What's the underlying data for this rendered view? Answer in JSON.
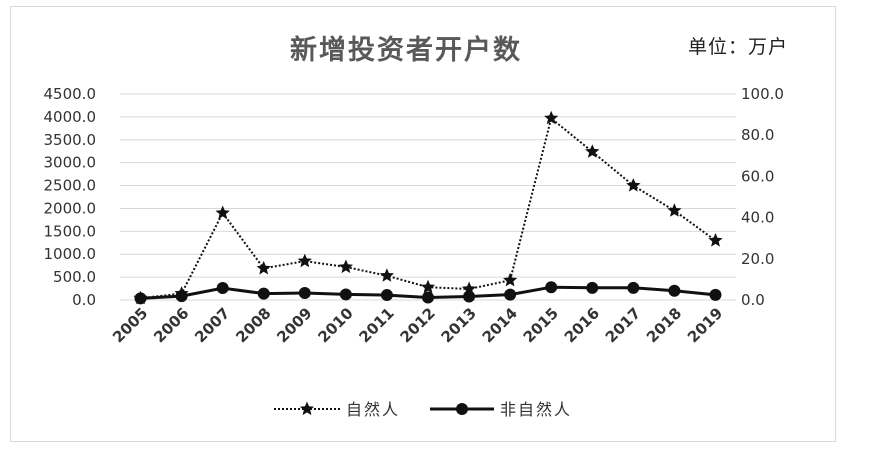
{
  "chart_data": {
    "type": "line",
    "title": "新增投资者开户数",
    "unit_label": "单位：万户",
    "categories": [
      "2005",
      "2006",
      "2007",
      "2008",
      "2009",
      "2010",
      "2011",
      "2012",
      "2013",
      "2014",
      "2015",
      "2016",
      "2017",
      "2018",
      "2019"
    ],
    "y_left": {
      "lim": [
        0,
        4500
      ],
      "ticks": [
        "0.0",
        "500.0",
        "1000.0",
        "1500.0",
        "2000.0",
        "2500.0",
        "3000.0",
        "3500.0",
        "4000.0",
        "4500.0"
      ]
    },
    "y_right": {
      "lim": [
        0,
        100
      ],
      "ticks": [
        "0.0",
        "20.0",
        "40.0",
        "60.0",
        "80.0",
        "100.0"
      ]
    },
    "series": [
      {
        "name": "自然人",
        "axis": "left",
        "style": "dotted-star",
        "values": [
          40,
          140,
          1900,
          690,
          850,
          720,
          530,
          280,
          240,
          430,
          3970,
          3240,
          2500,
          1950,
          1300
        ]
      },
      {
        "name": "非自然人",
        "axis": "right",
        "style": "solid-circle",
        "values": [
          0.8,
          1.9,
          5.8,
          3.1,
          3.4,
          2.7,
          2.4,
          1.2,
          1.7,
          2.6,
          6.2,
          5.9,
          5.9,
          4.5,
          2.5
        ]
      }
    ],
    "grid": true,
    "legend_position": "bottom"
  }
}
